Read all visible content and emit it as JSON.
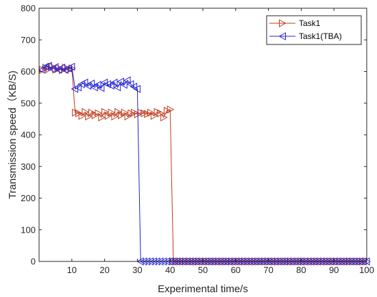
{
  "chart_data": {
    "type": "line",
    "xlabel": "Experimental time/s",
    "ylabel": "Transmission speed（KB/S)",
    "xlim": [
      0,
      100
    ],
    "ylim": [
      0,
      800
    ],
    "xticks": [
      10,
      20,
      30,
      40,
      50,
      60,
      70,
      80,
      90,
      100
    ],
    "yticks": [
      0,
      100,
      200,
      300,
      400,
      500,
      600,
      700,
      800
    ],
    "grid": false,
    "box": true,
    "legend_position": "top-right",
    "series": [
      {
        "name": "Task1",
        "color": "#c0391b",
        "marker": "triangle-right",
        "x": [
          1,
          2,
          3,
          4,
          5,
          6,
          7,
          8,
          9,
          10,
          11,
          12,
          13,
          14,
          15,
          16,
          17,
          18,
          19,
          20,
          21,
          22,
          23,
          24,
          25,
          26,
          27,
          28,
          29,
          30,
          31,
          32,
          33,
          34,
          35,
          36,
          37,
          38,
          39,
          40,
          41,
          42,
          43,
          44,
          45,
          46,
          47,
          48,
          49,
          50,
          51,
          52,
          53,
          54,
          55,
          56,
          57,
          58,
          59,
          60,
          61,
          62,
          63,
          64,
          65,
          66,
          67,
          68,
          69,
          70,
          71,
          72,
          73,
          74,
          75,
          76,
          77,
          78,
          79,
          80,
          81,
          82,
          83,
          84,
          85,
          86,
          87,
          88,
          89,
          90,
          91,
          92,
          93,
          94,
          95,
          96,
          97,
          98,
          99,
          100
        ],
        "y": [
          605,
          612,
          608,
          615,
          606,
          610,
          604,
          612,
          607,
          610,
          470,
          468,
          460,
          472,
          458,
          470,
          462,
          468,
          455,
          472,
          460,
          470,
          458,
          472,
          462,
          470,
          458,
          468,
          470,
          465,
          470,
          468,
          466,
          470,
          460,
          472,
          468,
          455,
          476,
          480,
          0,
          0,
          0,
          0,
          0,
          0,
          0,
          0,
          0,
          0,
          0,
          0,
          0,
          0,
          0,
          0,
          0,
          0,
          0,
          0,
          0,
          0,
          0,
          0,
          0,
          0,
          0,
          0,
          0,
          0,
          0,
          0,
          0,
          0,
          0,
          0,
          0,
          0,
          0,
          0,
          0,
          0,
          0,
          0,
          0,
          0,
          0,
          0,
          0,
          0,
          0,
          0,
          0,
          0,
          0,
          0,
          0,
          0,
          0,
          0
        ]
      },
      {
        "name": "Task1(TBA)",
        "color": "#1f1fd6",
        "marker": "triangle-left",
        "x": [
          1,
          2,
          3,
          4,
          5,
          6,
          7,
          8,
          9,
          10,
          11,
          12,
          13,
          14,
          15,
          16,
          17,
          18,
          19,
          20,
          21,
          22,
          23,
          24,
          25,
          26,
          27,
          28,
          29,
          30,
          31,
          32,
          33,
          34,
          35,
          36,
          37,
          38,
          39,
          40,
          41,
          42,
          43,
          44,
          45,
          46,
          47,
          48,
          49,
          50,
          51,
          52,
          53,
          54,
          55,
          56,
          57,
          58,
          59,
          60,
          61,
          62,
          63,
          64,
          65,
          66,
          67,
          68,
          69,
          70,
          71,
          72,
          73,
          74,
          75,
          76,
          77,
          78,
          79,
          80,
          81,
          82,
          83,
          84,
          85,
          86,
          87,
          88,
          89,
          90,
          91,
          92,
          93,
          94,
          95,
          96,
          97,
          98,
          99,
          100
        ],
        "y": [
          605,
          615,
          618,
          608,
          614,
          606,
          612,
          605,
          610,
          615,
          545,
          550,
          560,
          565,
          555,
          562,
          550,
          558,
          548,
          565,
          560,
          556,
          565,
          550,
          568,
          558,
          572,
          560,
          552,
          545,
          0,
          0,
          0,
          0,
          0,
          0,
          0,
          0,
          0,
          0,
          0,
          0,
          0,
          0,
          0,
          0,
          0,
          0,
          0,
          0,
          0,
          0,
          0,
          0,
          0,
          0,
          0,
          0,
          0,
          0,
          0,
          0,
          0,
          0,
          0,
          0,
          0,
          0,
          0,
          0,
          0,
          0,
          0,
          0,
          0,
          0,
          0,
          0,
          0,
          0,
          0,
          0,
          0,
          0,
          0,
          0,
          0,
          0,
          0,
          0,
          0,
          0,
          0,
          0,
          0,
          0,
          0,
          0,
          0,
          0
        ]
      }
    ]
  }
}
